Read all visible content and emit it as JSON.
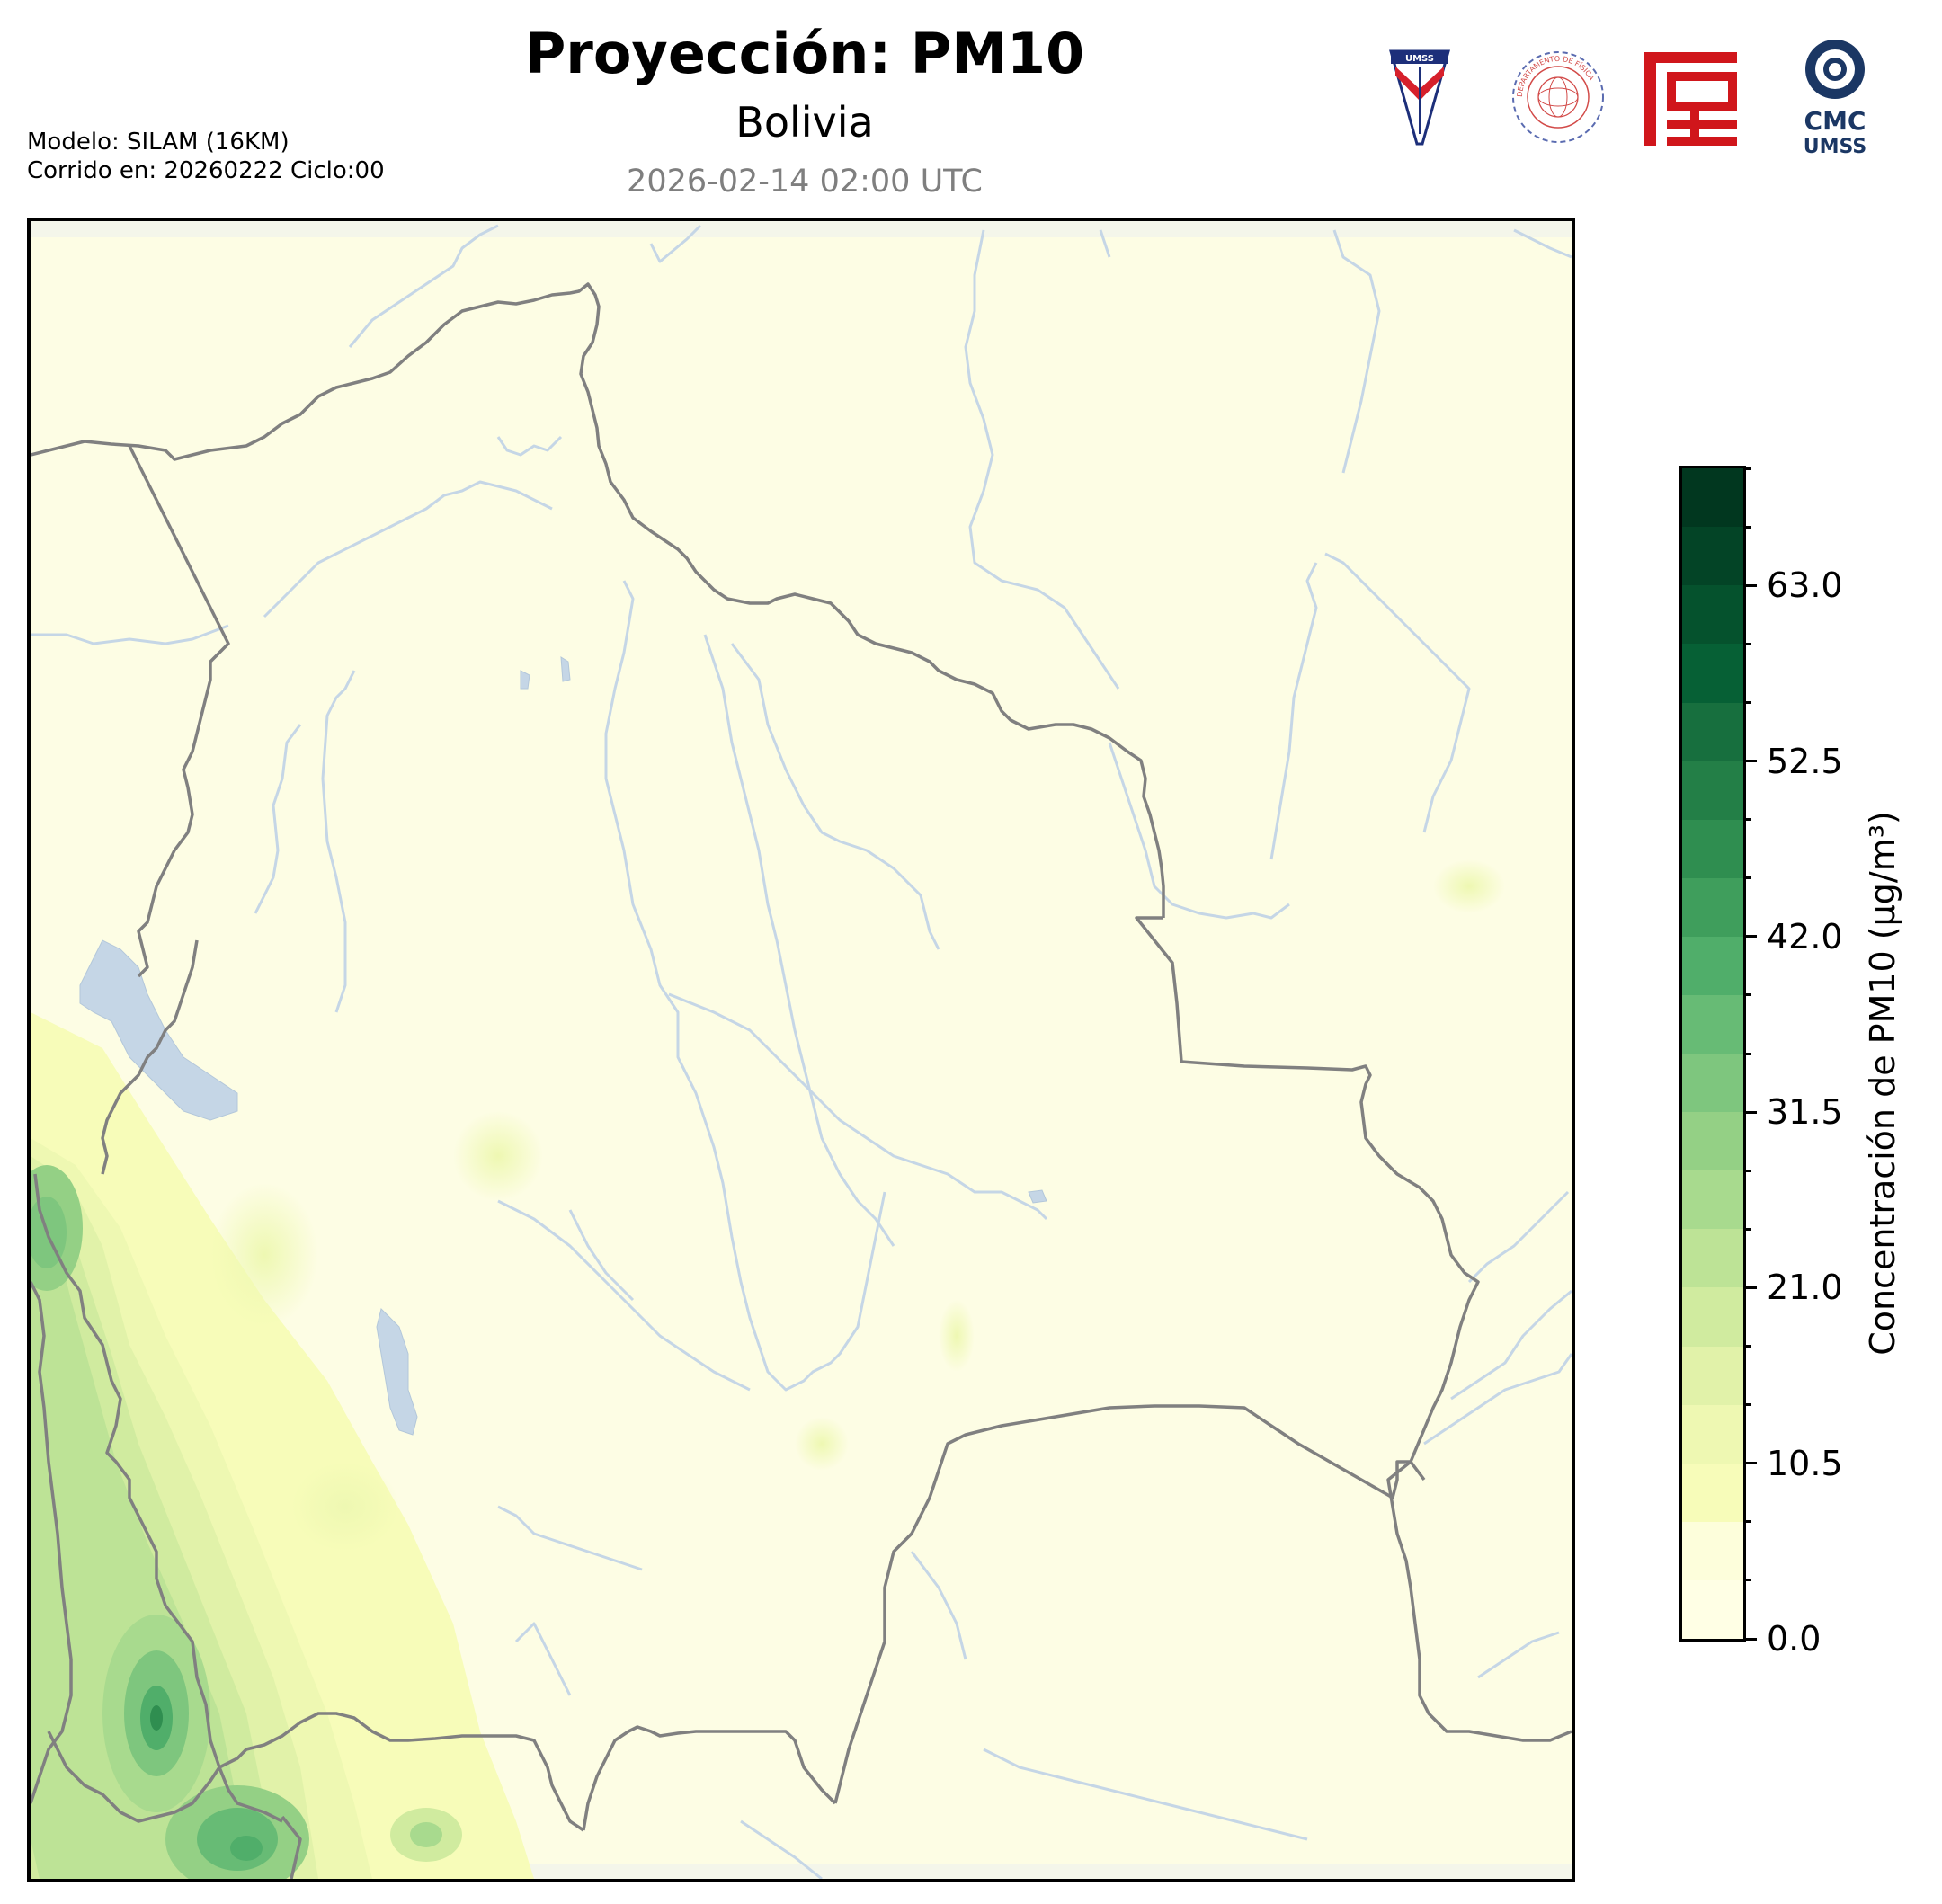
{
  "header": {
    "title": "Proyección: PM10",
    "region": "Bolivia",
    "datetime": "2026-02-14 02:00 UTC",
    "model_line": "Modelo: SILAM (16KM)",
    "run_line": "Corrido en: 20260222 Ciclo:00"
  },
  "logos": [
    {
      "name": "umss-shield-logo",
      "text": "UMSS"
    },
    {
      "name": "departamento-fisica-seal",
      "text": "DEPARTAMENTO DE FÍSICA"
    },
    {
      "name": "red-emblem-logo",
      "text": ""
    },
    {
      "name": "cmc-umss-logo",
      "text_top": "CMC",
      "text_bottom": "UMSS"
    }
  ],
  "colorbar": {
    "label": "Concentración de PM10 (µg/m³)",
    "min": 0,
    "max": 70,
    "tick_labels": [
      "0.0",
      "10.5",
      "21.0",
      "31.5",
      "42.0",
      "52.5",
      "63.0"
    ],
    "tick_values": [
      0,
      10.5,
      21,
      31.5,
      42,
      52.5,
      63
    ],
    "level_step": 3.5,
    "colors": [
      "#ffffe5",
      "#fdfedb",
      "#f7fcb9",
      "#eef8b2",
      "#e1f2a9",
      "#d0eb9f",
      "#bde396",
      "#a8da8e",
      "#94d085",
      "#7ec67e",
      "#67bb75",
      "#50ae6a",
      "#3f9e5c",
      "#2f8e50",
      "#237f47",
      "#176f3e",
      "#066035",
      "#05522d",
      "#034426",
      "#01371f"
    ]
  },
  "map": {
    "type": "pm10 concentration forecast map",
    "background_level_color": "#fdfde4",
    "river_color": "#c5d6e6",
    "border_color": "#808080",
    "lake_color": "#c5d6e6"
  }
}
